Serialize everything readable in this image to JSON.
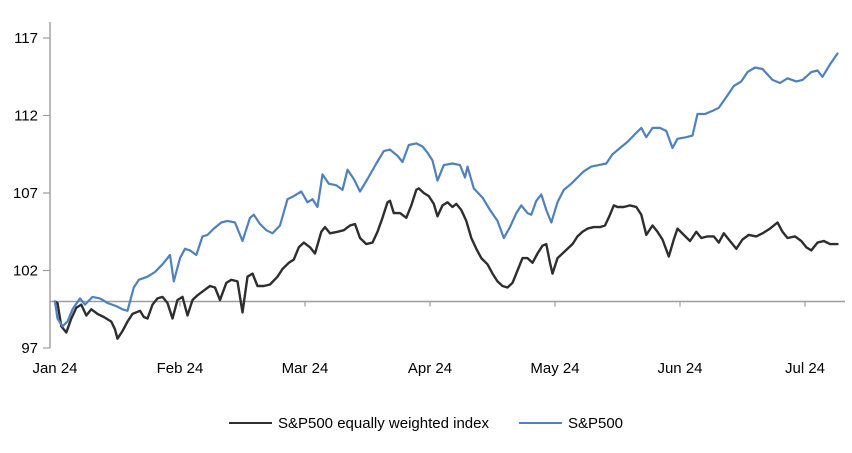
{
  "chart_data": {
    "type": "line",
    "title": "",
    "x_axis": {
      "tick_labels": [
        "Jan 24",
        "Feb 24",
        "Mar 24",
        "Apr 24",
        "May 24",
        "Jun 24",
        "Jul 24"
      ],
      "unit": "months since Jan 2024, daily points"
    },
    "y_axis": {
      "ticks": [
        97,
        102,
        107,
        112,
        117
      ],
      "range": [
        97,
        118.5
      ]
    },
    "reference_line_value": 100,
    "grid": "off",
    "legend_position": "bottom",
    "colors": {
      "equal_weight_line": "#2e2e2e",
      "sp500_line": "#4e81bd",
      "axis_gray": "#9d9d9d",
      "tick_text": "#000000"
    },
    "series": [
      {
        "name": "S&P500 equally weighted index",
        "color": "#2e2e2e",
        "points": [
          [
            0,
            100
          ],
          [
            0.02,
            99.9
          ],
          [
            0.05,
            98.4
          ],
          [
            0.09,
            98
          ],
          [
            0.13,
            98.9
          ],
          [
            0.17,
            99.6
          ],
          [
            0.21,
            99.8
          ],
          [
            0.25,
            99.1
          ],
          [
            0.29,
            99.5
          ],
          [
            0.34,
            99.2
          ],
          [
            0.39,
            99
          ],
          [
            0.45,
            98.7
          ],
          [
            0.48,
            98.2
          ],
          [
            0.5,
            97.6
          ],
          [
            0.54,
            98.1
          ],
          [
            0.58,
            98.7
          ],
          [
            0.62,
            99.2
          ],
          [
            0.68,
            99.4
          ],
          [
            0.71,
            99
          ],
          [
            0.74,
            98.9
          ],
          [
            0.78,
            99.8
          ],
          [
            0.82,
            100.2
          ],
          [
            0.86,
            100.3
          ],
          [
            0.9,
            99.9
          ],
          [
            0.94,
            98.9
          ],
          [
            0.98,
            100.1
          ],
          [
            1.02,
            100.3
          ],
          [
            1.06,
            99.1
          ],
          [
            1.1,
            100.1
          ],
          [
            1.14,
            100.4
          ],
          [
            1.19,
            100.7
          ],
          [
            1.24,
            101
          ],
          [
            1.28,
            100.9
          ],
          [
            1.32,
            100.1
          ],
          [
            1.37,
            101.2
          ],
          [
            1.41,
            101.4
          ],
          [
            1.46,
            101.3
          ],
          [
            1.5,
            99.3
          ],
          [
            1.54,
            101.6
          ],
          [
            1.58,
            101.8
          ],
          [
            1.62,
            101
          ],
          [
            1.67,
            101
          ],
          [
            1.72,
            101.1
          ],
          [
            1.78,
            101.6
          ],
          [
            1.82,
            102.1
          ],
          [
            1.87,
            102.5
          ],
          [
            1.91,
            102.7
          ],
          [
            1.95,
            103.5
          ],
          [
            1.99,
            103.8
          ],
          [
            2.04,
            103.5
          ],
          [
            2.08,
            103.1
          ],
          [
            2.13,
            104.5
          ],
          [
            2.16,
            104.8
          ],
          [
            2.2,
            104.4
          ],
          [
            2.26,
            104.5
          ],
          [
            2.31,
            104.6
          ],
          [
            2.36,
            104.9
          ],
          [
            2.4,
            105
          ],
          [
            2.44,
            104.1
          ],
          [
            2.49,
            103.7
          ],
          [
            2.54,
            103.8
          ],
          [
            2.58,
            104.5
          ],
          [
            2.62,
            105.4
          ],
          [
            2.66,
            106.4
          ],
          [
            2.68,
            106.5
          ],
          [
            2.71,
            105.7
          ],
          [
            2.76,
            105.7
          ],
          [
            2.81,
            105.4
          ],
          [
            2.85,
            106.2
          ],
          [
            2.89,
            107.2
          ],
          [
            2.91,
            107.3
          ],
          [
            2.95,
            107
          ],
          [
            2.99,
            106.8
          ],
          [
            3.03,
            106.3
          ],
          [
            3.06,
            105.5
          ],
          [
            3.1,
            106.2
          ],
          [
            3.14,
            106.4
          ],
          [
            3.18,
            106.1
          ],
          [
            3.21,
            106.3
          ],
          [
            3.25,
            105.9
          ],
          [
            3.29,
            105.2
          ],
          [
            3.33,
            104.1
          ],
          [
            3.37,
            103.4
          ],
          [
            3.41,
            102.8
          ],
          [
            3.46,
            102.4
          ],
          [
            3.5,
            101.8
          ],
          [
            3.54,
            101.3
          ],
          [
            3.58,
            101
          ],
          [
            3.62,
            100.9
          ],
          [
            3.66,
            101.2
          ],
          [
            3.7,
            102
          ],
          [
            3.74,
            102.8
          ],
          [
            3.78,
            102.8
          ],
          [
            3.82,
            102.5
          ],
          [
            3.86,
            103.1
          ],
          [
            3.9,
            103.6
          ],
          [
            3.93,
            103.7
          ],
          [
            3.96,
            102.5
          ],
          [
            3.98,
            101.8
          ],
          [
            4.02,
            102.8
          ],
          [
            4.06,
            103.1
          ],
          [
            4.1,
            103.4
          ],
          [
            4.14,
            103.7
          ],
          [
            4.18,
            104.2
          ],
          [
            4.22,
            104.5
          ],
          [
            4.26,
            104.7
          ],
          [
            4.31,
            104.8
          ],
          [
            4.36,
            104.8
          ],
          [
            4.4,
            104.9
          ],
          [
            4.44,
            105.6
          ],
          [
            4.47,
            106.2
          ],
          [
            4.5,
            106.1
          ],
          [
            4.55,
            106.1
          ],
          [
            4.6,
            106.2
          ],
          [
            4.65,
            106.1
          ],
          [
            4.69,
            105.6
          ],
          [
            4.73,
            104.3
          ],
          [
            4.78,
            104.9
          ],
          [
            4.82,
            104.5
          ],
          [
            4.86,
            104
          ],
          [
            4.91,
            102.9
          ],
          [
            4.95,
            104
          ],
          [
            4.98,
            104.7
          ],
          [
            5.03,
            104.3
          ],
          [
            5.08,
            103.9
          ],
          [
            5.13,
            104.5
          ],
          [
            5.17,
            104.1
          ],
          [
            5.22,
            104.2
          ],
          [
            5.27,
            104.2
          ],
          [
            5.31,
            103.8
          ],
          [
            5.35,
            104.4
          ],
          [
            5.4,
            103.9
          ],
          [
            5.45,
            103.4
          ],
          [
            5.5,
            104
          ],
          [
            5.55,
            104.3
          ],
          [
            5.61,
            104.2
          ],
          [
            5.66,
            104.4
          ],
          [
            5.72,
            104.7
          ],
          [
            5.78,
            105.1
          ],
          [
            5.82,
            104.5
          ],
          [
            5.86,
            104.1
          ],
          [
            5.92,
            104.2
          ],
          [
            5.97,
            103.9
          ],
          [
            6.01,
            103.5
          ],
          [
            6.05,
            103.3
          ],
          [
            6.1,
            103.8
          ],
          [
            6.15,
            103.9
          ],
          [
            6.2,
            103.7
          ],
          [
            6.26,
            103.7
          ]
        ]
      },
      {
        "name": "S&P500",
        "color": "#4e81bd",
        "points": [
          [
            0,
            100
          ],
          [
            0.02,
            98.9
          ],
          [
            0.06,
            98.4
          ],
          [
            0.1,
            98.7
          ],
          [
            0.14,
            99.5
          ],
          [
            0.2,
            100.2
          ],
          [
            0.24,
            99.8
          ],
          [
            0.3,
            100.3
          ],
          [
            0.36,
            100.2
          ],
          [
            0.42,
            99.9
          ],
          [
            0.49,
            99.7
          ],
          [
            0.54,
            99.5
          ],
          [
            0.58,
            99.4
          ],
          [
            0.63,
            100.9
          ],
          [
            0.67,
            101.4
          ],
          [
            0.74,
            101.6
          ],
          [
            0.8,
            101.9
          ],
          [
            0.86,
            102.4
          ],
          [
            0.92,
            103
          ],
          [
            0.95,
            101.3
          ],
          [
            1,
            102.8
          ],
          [
            1.04,
            103.4
          ],
          [
            1.08,
            103.3
          ],
          [
            1.13,
            103
          ],
          [
            1.18,
            104.2
          ],
          [
            1.22,
            104.3
          ],
          [
            1.27,
            104.7
          ],
          [
            1.33,
            105.1
          ],
          [
            1.38,
            105.2
          ],
          [
            1.44,
            105.1
          ],
          [
            1.5,
            103.9
          ],
          [
            1.56,
            105.4
          ],
          [
            1.59,
            105.6
          ],
          [
            1.64,
            105
          ],
          [
            1.69,
            104.6
          ],
          [
            1.74,
            104.4
          ],
          [
            1.8,
            104.9
          ],
          [
            1.86,
            106.6
          ],
          [
            1.91,
            106.8
          ],
          [
            1.97,
            107.1
          ],
          [
            2.02,
            106.4
          ],
          [
            2.06,
            106.6
          ],
          [
            2.1,
            106.1
          ],
          [
            2.14,
            108.2
          ],
          [
            2.19,
            107.6
          ],
          [
            2.25,
            107.5
          ],
          [
            2.3,
            107.2
          ],
          [
            2.34,
            108.5
          ],
          [
            2.39,
            107.9
          ],
          [
            2.44,
            107.1
          ],
          [
            2.5,
            107.9
          ],
          [
            2.57,
            108.9
          ],
          [
            2.63,
            109.7
          ],
          [
            2.68,
            109.8
          ],
          [
            2.74,
            109.4
          ],
          [
            2.78,
            109
          ],
          [
            2.83,
            110.1
          ],
          [
            2.89,
            110.2
          ],
          [
            2.94,
            110
          ],
          [
            2.98,
            109.6
          ],
          [
            3.02,
            109.1
          ],
          [
            3.06,
            107.8
          ],
          [
            3.11,
            108.8
          ],
          [
            3.18,
            108.9
          ],
          [
            3.24,
            108.8
          ],
          [
            3.28,
            108
          ],
          [
            3.3,
            108.7
          ],
          [
            3.35,
            107.3
          ],
          [
            3.42,
            106.7
          ],
          [
            3.48,
            105.9
          ],
          [
            3.54,
            105.2
          ],
          [
            3.59,
            104.1
          ],
          [
            3.64,
            104.8
          ],
          [
            3.69,
            105.7
          ],
          [
            3.73,
            106.2
          ],
          [
            3.78,
            105.7
          ],
          [
            3.81,
            105.6
          ],
          [
            3.85,
            106.5
          ],
          [
            3.89,
            106.9
          ],
          [
            3.93,
            105.9
          ],
          [
            3.97,
            105.1
          ],
          [
            4.02,
            106.4
          ],
          [
            4.07,
            107.2
          ],
          [
            4.13,
            107.6
          ],
          [
            4.18,
            108
          ],
          [
            4.23,
            108.4
          ],
          [
            4.29,
            108.7
          ],
          [
            4.35,
            108.8
          ],
          [
            4.41,
            108.9
          ],
          [
            4.46,
            109.5
          ],
          [
            4.52,
            109.9
          ],
          [
            4.58,
            110.3
          ],
          [
            4.64,
            110.8
          ],
          [
            4.69,
            111.2
          ],
          [
            4.73,
            110.6
          ],
          [
            4.78,
            111.2
          ],
          [
            4.84,
            111.2
          ],
          [
            4.89,
            111
          ],
          [
            4.94,
            109.9
          ],
          [
            4.98,
            110.5
          ],
          [
            5.05,
            110.6
          ],
          [
            5.1,
            110.7
          ],
          [
            5.14,
            112.1
          ],
          [
            5.2,
            112.1
          ],
          [
            5.26,
            112.3
          ],
          [
            5.31,
            112.5
          ],
          [
            5.38,
            113.3
          ],
          [
            5.43,
            113.9
          ],
          [
            5.49,
            114.2
          ],
          [
            5.54,
            114.8
          ],
          [
            5.6,
            115.1
          ],
          [
            5.66,
            115
          ],
          [
            5.74,
            114.3
          ],
          [
            5.8,
            114.1
          ],
          [
            5.86,
            114.4
          ],
          [
            5.93,
            114.2
          ],
          [
            5.98,
            114.3
          ],
          [
            6.05,
            114.8
          ],
          [
            6.1,
            114.9
          ],
          [
            6.14,
            114.5
          ],
          [
            6.2,
            115.3
          ],
          [
            6.26,
            116
          ]
        ]
      }
    ]
  }
}
